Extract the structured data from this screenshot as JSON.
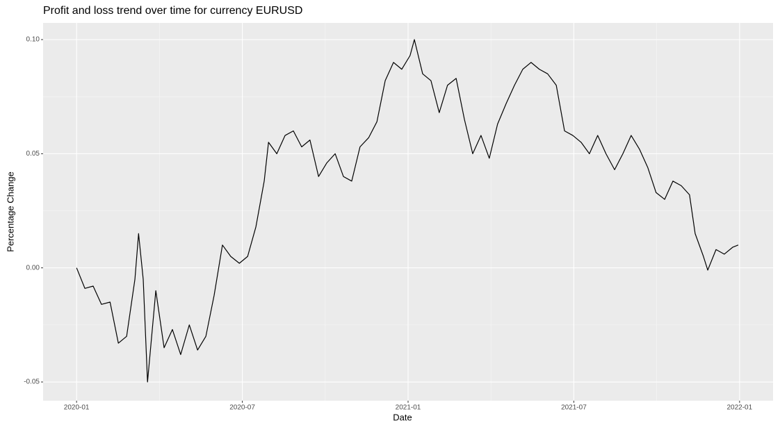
{
  "chart_data": {
    "type": "line",
    "title": "Profit and loss trend over time for currency EURUSD",
    "x_label": "Date",
    "y_label": "Percentage Change",
    "x": [
      2020.0,
      2020.025,
      2020.05,
      2020.075,
      2020.101,
      2020.126,
      2020.151,
      2020.176,
      2020.187,
      2020.201,
      2020.214,
      2020.239,
      2020.264,
      2020.289,
      2020.314,
      2020.34,
      2020.365,
      2020.39,
      2020.415,
      2020.44,
      2020.465,
      2020.491,
      2020.516,
      2020.541,
      2020.566,
      2020.579,
      2020.604,
      2020.629,
      2020.654,
      2020.679,
      2020.704,
      2020.73,
      2020.755,
      2020.78,
      2020.805,
      2020.83,
      2020.855,
      2020.881,
      2020.906,
      2020.931,
      2020.956,
      2020.981,
      2021.006,
      2021.019,
      2021.044,
      2021.069,
      2021.094,
      2021.119,
      2021.145,
      2021.17,
      2021.195,
      2021.22,
      2021.245,
      2021.27,
      2021.296,
      2021.321,
      2021.346,
      2021.371,
      2021.396,
      2021.421,
      2021.447,
      2021.472,
      2021.497,
      2021.522,
      2021.547,
      2021.572,
      2021.597,
      2021.623,
      2021.648,
      2021.673,
      2021.698,
      2021.723,
      2021.748,
      2021.774,
      2021.799,
      2021.824,
      2021.849,
      2021.866,
      2021.891,
      2021.904,
      2021.929,
      2021.954,
      2021.979,
      2021.996
    ],
    "series": [
      {
        "color": "#000000",
        "values": [
          0.0,
          -0.009,
          -0.008,
          -0.016,
          -0.015,
          -0.033,
          -0.03,
          -0.005,
          0.015,
          -0.005,
          -0.05,
          -0.01,
          -0.035,
          -0.027,
          -0.038,
          -0.025,
          -0.036,
          -0.03,
          -0.012,
          0.01,
          0.005,
          0.002,
          0.005,
          0.018,
          0.038,
          0.055,
          0.05,
          0.058,
          0.06,
          0.053,
          0.056,
          0.04,
          0.046,
          0.05,
          0.04,
          0.038,
          0.053,
          0.057,
          0.064,
          0.082,
          0.09,
          0.087,
          0.093,
          0.1,
          0.085,
          0.082,
          0.068,
          0.08,
          0.083,
          0.065,
          0.05,
          0.058,
          0.048,
          0.063,
          0.072,
          0.08,
          0.087,
          0.09,
          0.087,
          0.085,
          0.08,
          0.06,
          0.058,
          0.055,
          0.05,
          0.058,
          0.05,
          0.043,
          0.05,
          0.058,
          0.052,
          0.044,
          0.033,
          0.03,
          0.038,
          0.036,
          0.032,
          0.015,
          0.005,
          -0.001,
          0.008,
          0.006,
          0.009,
          0.01
        ]
      }
    ],
    "xlim": [
      2019.899,
      2022.101
    ],
    "xticks": [
      {
        "value": 2020,
        "label": "2020-01"
      },
      {
        "value": 2020.5,
        "label": "2020-07"
      },
      {
        "value": 2021,
        "label": "2021-01"
      },
      {
        "value": 2021.5,
        "label": "2021-07"
      },
      {
        "value": 2022,
        "label": "2022-01"
      }
    ],
    "ylim": [
      -0.0582,
      0.1073
    ],
    "yticks": [
      {
        "value": -0.05,
        "label": "-0.05"
      },
      {
        "value": 0,
        "label": "0.00"
      },
      0.05,
      {
        "value": 0.1,
        "label": "0.10"
      }
    ],
    "grid": true
  }
}
